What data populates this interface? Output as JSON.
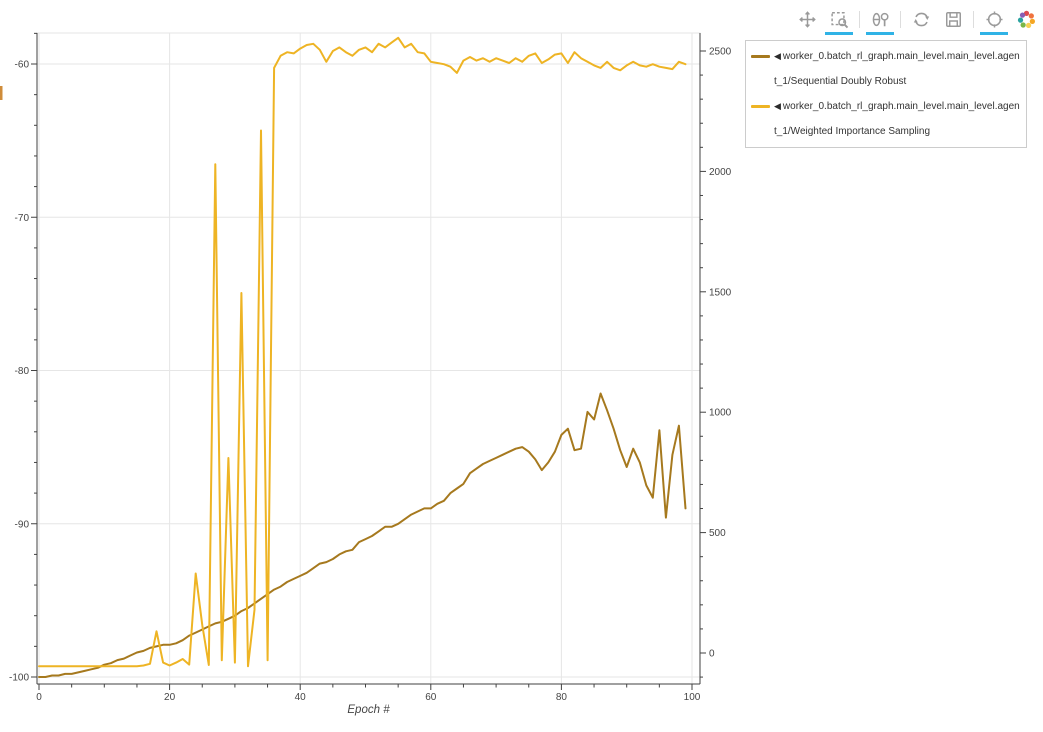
{
  "colors": {
    "sdr_line": "#a6791e",
    "wis_line": "#eeb424",
    "grid": "#e6e6e6",
    "axis_line": "#424242",
    "tick_text": "#454545",
    "active_tool_underline": "#30b3e6",
    "toolbar_icon": "#9a9a9a",
    "legend_border": "#cccccc",
    "clipped_left_edge_mark": "#cf8c3a"
  },
  "toolbar": {
    "tools": [
      {
        "name": "pan",
        "icon": "pan-move-icon",
        "active": false
      },
      {
        "name": "box-zoom",
        "icon": "box-zoom-icon",
        "active": true
      },
      {
        "name": "wheel-zoom",
        "icon": "wheel-zoom-icon",
        "active": true
      },
      {
        "name": "reset",
        "icon": "reset-icon",
        "active": false
      },
      {
        "name": "save",
        "icon": "save-icon",
        "active": false
      },
      {
        "name": "hover",
        "icon": "hover-crosshair-icon",
        "active": true
      },
      {
        "name": "bokeh-logo",
        "icon": "bokeh-logo-icon",
        "active": false
      }
    ]
  },
  "legend": {
    "entries": [
      {
        "marker": "◀",
        "label": "worker_0.batch_rl_graph.main_level.main_level.agent_1/Sequential Doubly Robust",
        "color": "#a6791e"
      },
      {
        "marker": "◀",
        "label": "worker_0.batch_rl_graph.main_level.main_level.agent_1/Weighted Importance Sampling",
        "color": "#eeb424"
      }
    ]
  },
  "chart_data": {
    "type": "line",
    "xlabel": "Epoch #",
    "x_start": 0,
    "x_step": 1,
    "grid": true,
    "legend_position": "right-outside",
    "axes": {
      "x": {
        "ticks": [
          0,
          20,
          40,
          60,
          80,
          100
        ],
        "minor_step": 5,
        "range": [
          -0.4,
          101.3
        ]
      },
      "y_left": {
        "ticks": [
          -100,
          -90,
          -80,
          -70,
          -60
        ],
        "minor_step": 2,
        "range": [
          -100.5,
          -58.0
        ]
      },
      "y_right": {
        "ticks": [
          0,
          500,
          1000,
          1500,
          2000,
          2500
        ],
        "minor_step": 100,
        "range": [
          -129,
          2576
        ]
      }
    },
    "series": [
      {
        "name": "worker_0.batch_rl_graph.main_level.main_level.agent_1/Sequential Doubly Robust",
        "axis": "left",
        "color": "#a6791e",
        "values": [
          -100.0,
          -100.0,
          -99.9,
          -99.9,
          -99.8,
          -99.8,
          -99.7,
          -99.6,
          -99.5,
          -99.4,
          -99.2,
          -99.1,
          -98.9,
          -98.8,
          -98.6,
          -98.4,
          -98.3,
          -98.1,
          -98.0,
          -97.9,
          -97.9,
          -97.8,
          -97.6,
          -97.3,
          -97.1,
          -96.9,
          -96.7,
          -96.5,
          -96.4,
          -96.2,
          -96.0,
          -95.7,
          -95.5,
          -95.2,
          -94.9,
          -94.6,
          -94.3,
          -94.1,
          -93.8,
          -93.6,
          -93.4,
          -93.2,
          -92.9,
          -92.6,
          -92.5,
          -92.3,
          -92.0,
          -91.8,
          -91.7,
          -91.2,
          -91.0,
          -90.8,
          -90.5,
          -90.2,
          -90.2,
          -90.0,
          -89.7,
          -89.4,
          -89.2,
          -89.0,
          -89.0,
          -88.7,
          -88.5,
          -88.0,
          -87.7,
          -87.4,
          -86.7,
          -86.4,
          -86.1,
          -85.9,
          -85.7,
          -85.5,
          -85.3,
          -85.1,
          -85.0,
          -85.3,
          -85.8,
          -86.5,
          -86.0,
          -85.3,
          -84.2,
          -83.8,
          -85.2,
          -85.1,
          -82.7,
          -83.2,
          -81.5,
          -82.6,
          -83.8,
          -85.2,
          -86.3,
          -85.1,
          -86.0,
          -87.5,
          -88.3,
          -83.9,
          -89.6,
          -85.5,
          -83.6,
          -89.0
        ]
      },
      {
        "name": "worker_0.batch_rl_graph.main_level.main_level.agent_1/Weighted Importance Sampling",
        "axis": "right",
        "color": "#eeb424",
        "values": [
          -55,
          -55,
          -55,
          -55,
          -55,
          -55,
          -55,
          -55,
          -55,
          -55,
          -55,
          -55,
          -55,
          -55,
          -55,
          -55,
          -52,
          -45,
          90,
          -40,
          -52,
          -40,
          -25,
          -48,
          330,
          115,
          -50,
          2030,
          -30,
          810,
          -40,
          1495,
          -55,
          180,
          2170,
          -30,
          2430,
          2480,
          2495,
          2490,
          2510,
          2525,
          2530,
          2505,
          2455,
          2500,
          2515,
          2495,
          2480,
          2505,
          2515,
          2495,
          2530,
          2515,
          2535,
          2555,
          2515,
          2530,
          2495,
          2490,
          2455,
          2450,
          2445,
          2435,
          2409,
          2460,
          2475,
          2460,
          2470,
          2455,
          2470,
          2460,
          2450,
          2470,
          2455,
          2480,
          2490,
          2450,
          2465,
          2485,
          2490,
          2450,
          2495,
          2470,
          2455,
          2440,
          2430,
          2455,
          2430,
          2420,
          2440,
          2455,
          2440,
          2435,
          2445,
          2435,
          2430,
          2425,
          2455,
          2445
        ]
      }
    ]
  }
}
